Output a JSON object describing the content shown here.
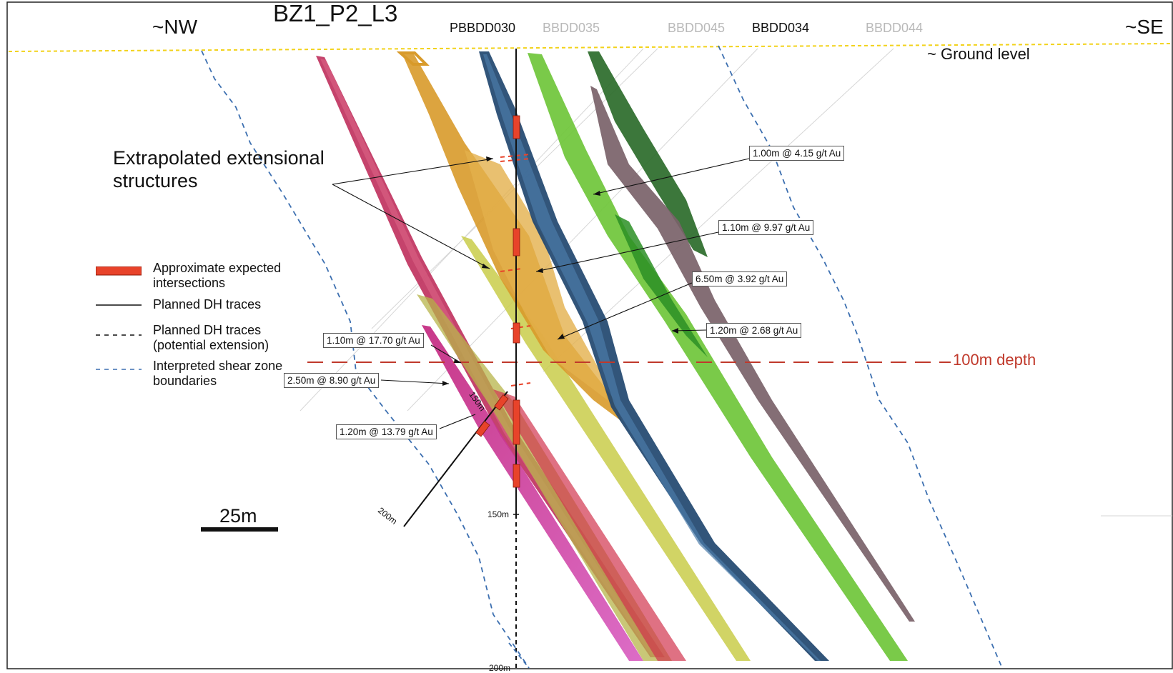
{
  "section": {
    "title": "BZ1_P2_L3",
    "direction_left": "~NW",
    "direction_right": "~SE",
    "ground_label": "~ Ground level",
    "extrapolated_label": "Extrapolated extensional structures",
    "depth_label": "100m depth",
    "scale_label": "25m"
  },
  "drillholes": [
    {
      "name": "PBBDD030",
      "highlighted": true
    },
    {
      "name": "BBDD035",
      "highlighted": false
    },
    {
      "name": "BBDD045",
      "highlighted": false
    },
    {
      "name": "BBDD034",
      "highlighted": true
    },
    {
      "name": "BBDD044",
      "highlighted": false
    }
  ],
  "depth_markers": {
    "trace_150": "150m",
    "trace_200": "200m",
    "inclined_150": "150m",
    "inclined_200": "200m"
  },
  "intercepts": [
    "1.00m @ 4.15 g/t Au",
    "1.10m @ 9.97 g/t Au",
    "6.50m @ 3.92 g/t Au",
    "1.20m @ 2.68 g/t Au",
    "1.10m @ 17.70 g/t Au",
    "2.50m @ 8.90 g/t Au",
    "1.20m @ 13.79 g/t Au"
  ],
  "legend": [
    {
      "symbol": "red-bar",
      "label": "Approximate expected intersections"
    },
    {
      "symbol": "solid-line",
      "label": "Planned DH traces"
    },
    {
      "symbol": "black-dash",
      "label": "Planned DH traces (potential extension)"
    },
    {
      "symbol": "blue-dash",
      "label": "Interpreted shear zone boundaries"
    }
  ],
  "colors": {
    "intersection": "#e8432a",
    "depth_line": "#c0392b",
    "shear": "#3c6fb0",
    "ground": "#f2d21a",
    "lodes": [
      "#c0335f",
      "#c8347a",
      "#d89a2a",
      "#c9cc4a",
      "#b7c94a",
      "#21476f",
      "#2c8f25",
      "#6fc63a",
      "#7a6269",
      "#2b6b2a"
    ]
  }
}
